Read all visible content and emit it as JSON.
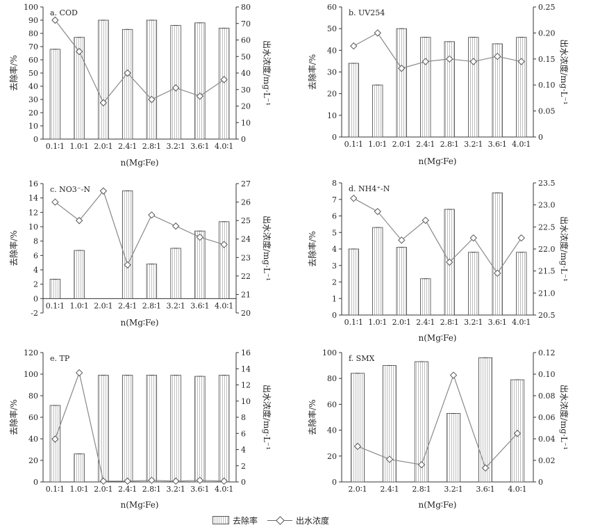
{
  "legend": {
    "bar": "去除率",
    "line": "出水浓度"
  },
  "chart_data": [
    {
      "type": "bar+line",
      "title": "a. COD",
      "xlabel": "n(Mg∶Fe)",
      "ylabel_left": "去除率/%",
      "ylabel_right": "出水浓度/mg·L⁻¹",
      "categories": [
        "0.1∶1",
        "1.0∶1",
        "2.0∶1",
        "2.4∶1",
        "2.8∶1",
        "3.2∶1",
        "3.6∶1",
        "4.0∶1"
      ],
      "series": [
        {
          "name": "去除率",
          "axis": "left",
          "values": [
            68,
            77,
            90,
            83,
            90,
            86,
            88,
            84
          ]
        },
        {
          "name": "出水浓度",
          "axis": "right",
          "values": [
            72,
            53,
            22,
            40,
            24,
            31,
            26,
            36
          ]
        }
      ],
      "ylim_left": [
        0,
        100
      ],
      "yticks_left": [
        0,
        10,
        20,
        30,
        40,
        50,
        60,
        70,
        80,
        90,
        100
      ],
      "ylim_right": [
        0,
        80
      ],
      "yticks_right": [
        0,
        10,
        20,
        30,
        40,
        50,
        60,
        70,
        80
      ]
    },
    {
      "type": "bar+line",
      "title": "b. UV254",
      "xlabel": "n(Mg∶Fe)",
      "ylabel_left": "去除率/%",
      "ylabel_right": "出水浓度/mg·L⁻¹",
      "categories": [
        "0.1∶1",
        "1.0∶1",
        "2.0∶1",
        "2.4∶1",
        "2.8∶1",
        "3.2∶1",
        "3.6∶1",
        "4.0∶1"
      ],
      "series": [
        {
          "name": "去除率",
          "axis": "left",
          "values": [
            34,
            24,
            50,
            46,
            44,
            46,
            43,
            46
          ]
        },
        {
          "name": "出水浓度",
          "axis": "right",
          "values": [
            0.175,
            0.2,
            0.132,
            0.145,
            0.15,
            0.145,
            0.155,
            0.145
          ]
        }
      ],
      "ylim_left": [
        0,
        60
      ],
      "yticks_left": [
        0,
        10,
        20,
        30,
        40,
        50,
        60
      ],
      "ylim_right": [
        0,
        0.25
      ],
      "yticks_right": [
        0,
        0.05,
        0.1,
        0.15,
        0.2,
        0.25
      ]
    },
    {
      "type": "bar+line",
      "title": "c. NO3⁻-N",
      "xlabel": "n(Mg∶Fe)",
      "ylabel_left": "去除率/%",
      "ylabel_right": "出水浓度/mg·L⁻¹",
      "categories": [
        "0.1∶1",
        "1.0∶1",
        "2.0∶1",
        "2.4∶1",
        "2.8∶1",
        "3.2∶1",
        "3.6∶1",
        "4.0∶1"
      ],
      "series": [
        {
          "name": "去除率",
          "axis": "left",
          "values": [
            2.7,
            6.7,
            0,
            15,
            4.8,
            7,
            9.4,
            10.7
          ]
        },
        {
          "name": "出水浓度",
          "axis": "right",
          "values": [
            26.0,
            25.0,
            26.6,
            22.6,
            25.3,
            24.7,
            24.1,
            23.7
          ]
        }
      ],
      "ylim_left": [
        -2,
        16
      ],
      "yticks_left": [
        -2,
        0,
        2,
        4,
        6,
        8,
        10,
        12,
        14,
        16
      ],
      "ylim_right": [
        20,
        27
      ],
      "yticks_right": [
        20,
        21,
        22,
        23,
        24,
        25,
        26,
        27
      ]
    },
    {
      "type": "bar+line",
      "title": "d. NH4⁺-N",
      "xlabel": "n(Mg∶Fe)",
      "ylabel_left": "去除率/%",
      "ylabel_right": "出水浓度/mg·L⁻¹",
      "categories": [
        "0.1∶1",
        "1.0∶1",
        "2.0∶1",
        "2.4∶1",
        "2.8∶1",
        "3.2∶1",
        "3.6∶1",
        "4.0∶1"
      ],
      "series": [
        {
          "name": "去除率",
          "axis": "left",
          "values": [
            4.0,
            5.3,
            4.1,
            2.2,
            6.4,
            3.8,
            7.4,
            3.8
          ]
        },
        {
          "name": "出水浓度",
          "axis": "right",
          "values": [
            23.15,
            22.85,
            22.2,
            22.65,
            21.7,
            22.25,
            21.45,
            22.25
          ]
        }
      ],
      "ylim_left": [
        0,
        8
      ],
      "yticks_left": [
        0,
        1,
        2,
        3,
        4,
        5,
        6,
        7,
        8
      ],
      "ylim_right": [
        20.5,
        23.5
      ],
      "yticks_right": [
        20.5,
        21.0,
        21.5,
        22.0,
        22.5,
        23.0,
        23.5
      ]
    },
    {
      "type": "bar+line",
      "title": "e. TP",
      "xlabel": "n(Mg∶Fe)",
      "ylabel_left": "去除率/%",
      "ylabel_right": "出水浓度/mg·L⁻¹",
      "categories": [
        "0.1∶1",
        "1.0∶1",
        "2.0∶1",
        "2.4∶1",
        "2.8∶1",
        "3.2∶1",
        "3.6∶1",
        "4.0∶1"
      ],
      "series": [
        {
          "name": "去除率",
          "axis": "left",
          "values": [
            71,
            26,
            99,
            99,
            99,
            99,
            98,
            99
          ]
        },
        {
          "name": "出水浓度",
          "axis": "right",
          "values": [
            5.3,
            13.5,
            0.1,
            0.1,
            0.2,
            0.1,
            0.2,
            0.1
          ]
        }
      ],
      "ylim_left": [
        0,
        120
      ],
      "yticks_left": [
        0,
        20,
        40,
        60,
        80,
        100,
        120
      ],
      "ylim_right": [
        0,
        16
      ],
      "yticks_right": [
        0,
        2,
        4,
        6,
        8,
        10,
        12,
        14,
        16
      ]
    },
    {
      "type": "bar+line",
      "title": "f. SMX",
      "xlabel": "n(Mg∶Fe)",
      "ylabel_left": "去除率/%",
      "ylabel_right": "出水浓度/mg·L⁻¹",
      "categories": [
        "2.0∶1",
        "2.4∶1",
        "2.8∶1",
        "3.2∶1",
        "3.6∶1",
        "4.0∶1"
      ],
      "series": [
        {
          "name": "去除率",
          "axis": "left",
          "values": [
            84,
            90,
            93,
            53,
            96,
            79
          ]
        },
        {
          "name": "出水浓度",
          "axis": "right",
          "values": [
            0.033,
            0.021,
            0.016,
            0.099,
            0.013,
            0.045
          ]
        }
      ],
      "ylim_left": [
        0,
        100
      ],
      "yticks_left": [
        0,
        20,
        40,
        60,
        80,
        100
      ],
      "ylim_right": [
        0,
        0.12
      ],
      "yticks_right": [
        0,
        0.02,
        0.04,
        0.06,
        0.08,
        0.1,
        0.12
      ]
    }
  ]
}
